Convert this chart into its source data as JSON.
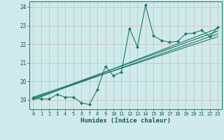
{
  "xlabel": "Humidex (Indice chaleur)",
  "bg_color": "#ceeaea",
  "grid_color": "#b8d8d8",
  "line_color": "#1a7a6a",
  "xlim": [
    -0.5,
    23.5
  ],
  "ylim": [
    18.5,
    24.3
  ],
  "yticks": [
    19,
    20,
    21,
    22,
    23,
    24
  ],
  "xticks": [
    0,
    1,
    2,
    3,
    4,
    5,
    6,
    7,
    8,
    9,
    10,
    11,
    12,
    13,
    14,
    15,
    16,
    17,
    18,
    19,
    20,
    21,
    22,
    23
  ],
  "data_line_x": [
    0,
    1,
    2,
    3,
    4,
    5,
    6,
    7,
    8,
    9,
    10,
    11,
    12,
    13,
    14,
    15,
    16,
    17,
    18,
    19,
    20,
    21,
    22,
    23
  ],
  "data_line_y": [
    19.1,
    19.05,
    19.05,
    19.3,
    19.15,
    19.15,
    18.85,
    18.75,
    19.55,
    20.8,
    20.3,
    20.5,
    22.85,
    21.85,
    24.1,
    22.45,
    22.2,
    22.1,
    22.15,
    22.55,
    22.6,
    22.75,
    22.4,
    22.9
  ],
  "regression_lines": [
    {
      "x": [
        0,
        23
      ],
      "y": [
        19.05,
        22.55
      ]
    },
    {
      "x": [
        0,
        23
      ],
      "y": [
        19.1,
        22.7
      ]
    },
    {
      "x": [
        0,
        23
      ],
      "y": [
        19.0,
        22.85
      ]
    },
    {
      "x": [
        0,
        23
      ],
      "y": [
        19.15,
        22.4
      ]
    }
  ]
}
